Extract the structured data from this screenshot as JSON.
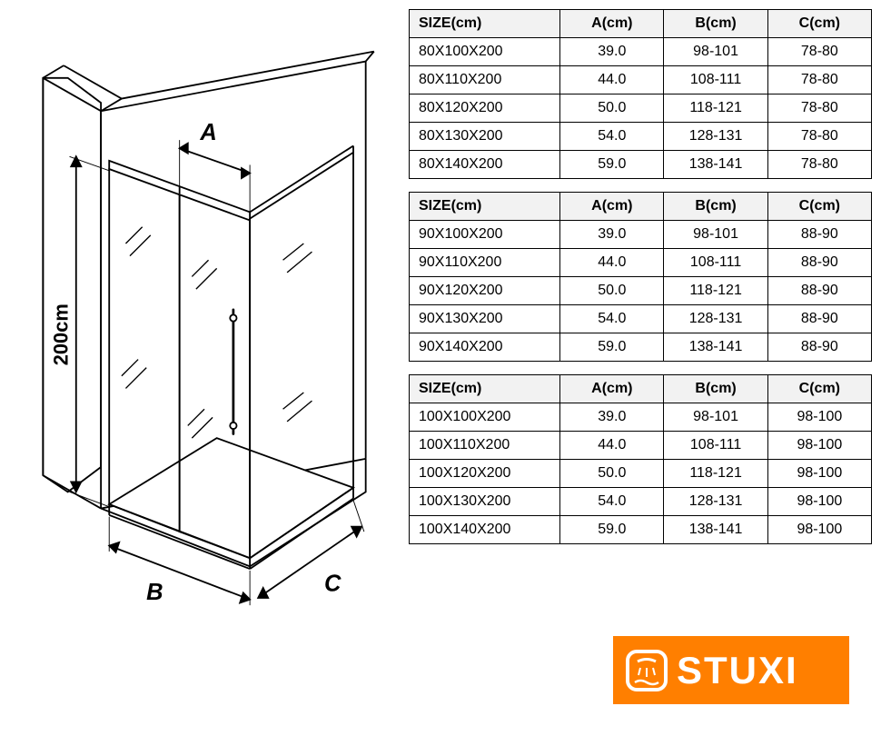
{
  "diagram": {
    "height_label": "200cm",
    "dim_A": "A",
    "dim_B": "B",
    "dim_C": "C",
    "line_color": "#000000",
    "wall_fill": "#ffffff",
    "stroke_width": 2
  },
  "tables": [
    {
      "headers": [
        "SIZE(cm)",
        "A(cm)",
        "B(cm)",
        "C(cm)"
      ],
      "rows": [
        [
          "80X100X200",
          "39.0",
          "98-101",
          "78-80"
        ],
        [
          "80X110X200",
          "44.0",
          "108-111",
          "78-80"
        ],
        [
          "80X120X200",
          "50.0",
          "118-121",
          "78-80"
        ],
        [
          "80X130X200",
          "54.0",
          "128-131",
          "78-80"
        ],
        [
          "80X140X200",
          "59.0",
          "138-141",
          "78-80"
        ]
      ]
    },
    {
      "headers": [
        "SIZE(cm)",
        "A(cm)",
        "B(cm)",
        "C(cm)"
      ],
      "rows": [
        [
          "90X100X200",
          "39.0",
          "98-101",
          "88-90"
        ],
        [
          "90X110X200",
          "44.0",
          "108-111",
          "88-90"
        ],
        [
          "90X120X200",
          "50.0",
          "118-121",
          "88-90"
        ],
        [
          "90X130X200",
          "54.0",
          "128-131",
          "88-90"
        ],
        [
          "90X140X200",
          "59.0",
          "138-141",
          "88-90"
        ]
      ]
    },
    {
      "headers": [
        "SIZE(cm)",
        "A(cm)",
        "B(cm)",
        "C(cm)"
      ],
      "rows": [
        [
          "100X100X200",
          "39.0",
          "98-101",
          "98-100"
        ],
        [
          "100X110X200",
          "44.0",
          "108-111",
          "98-100"
        ],
        [
          "100X120X200",
          "50.0",
          "118-121",
          "98-100"
        ],
        [
          "100X130X200",
          "54.0",
          "128-131",
          "98-100"
        ],
        [
          "100X140X200",
          "59.0",
          "138-141",
          "98-100"
        ]
      ]
    }
  ],
  "logo": {
    "text": "STUXI",
    "bg_color": "#ff7f00",
    "text_color": "#ffffff"
  },
  "table_style": {
    "header_bg": "#f2f2f2",
    "border_color": "#000000",
    "font_size": 16
  }
}
